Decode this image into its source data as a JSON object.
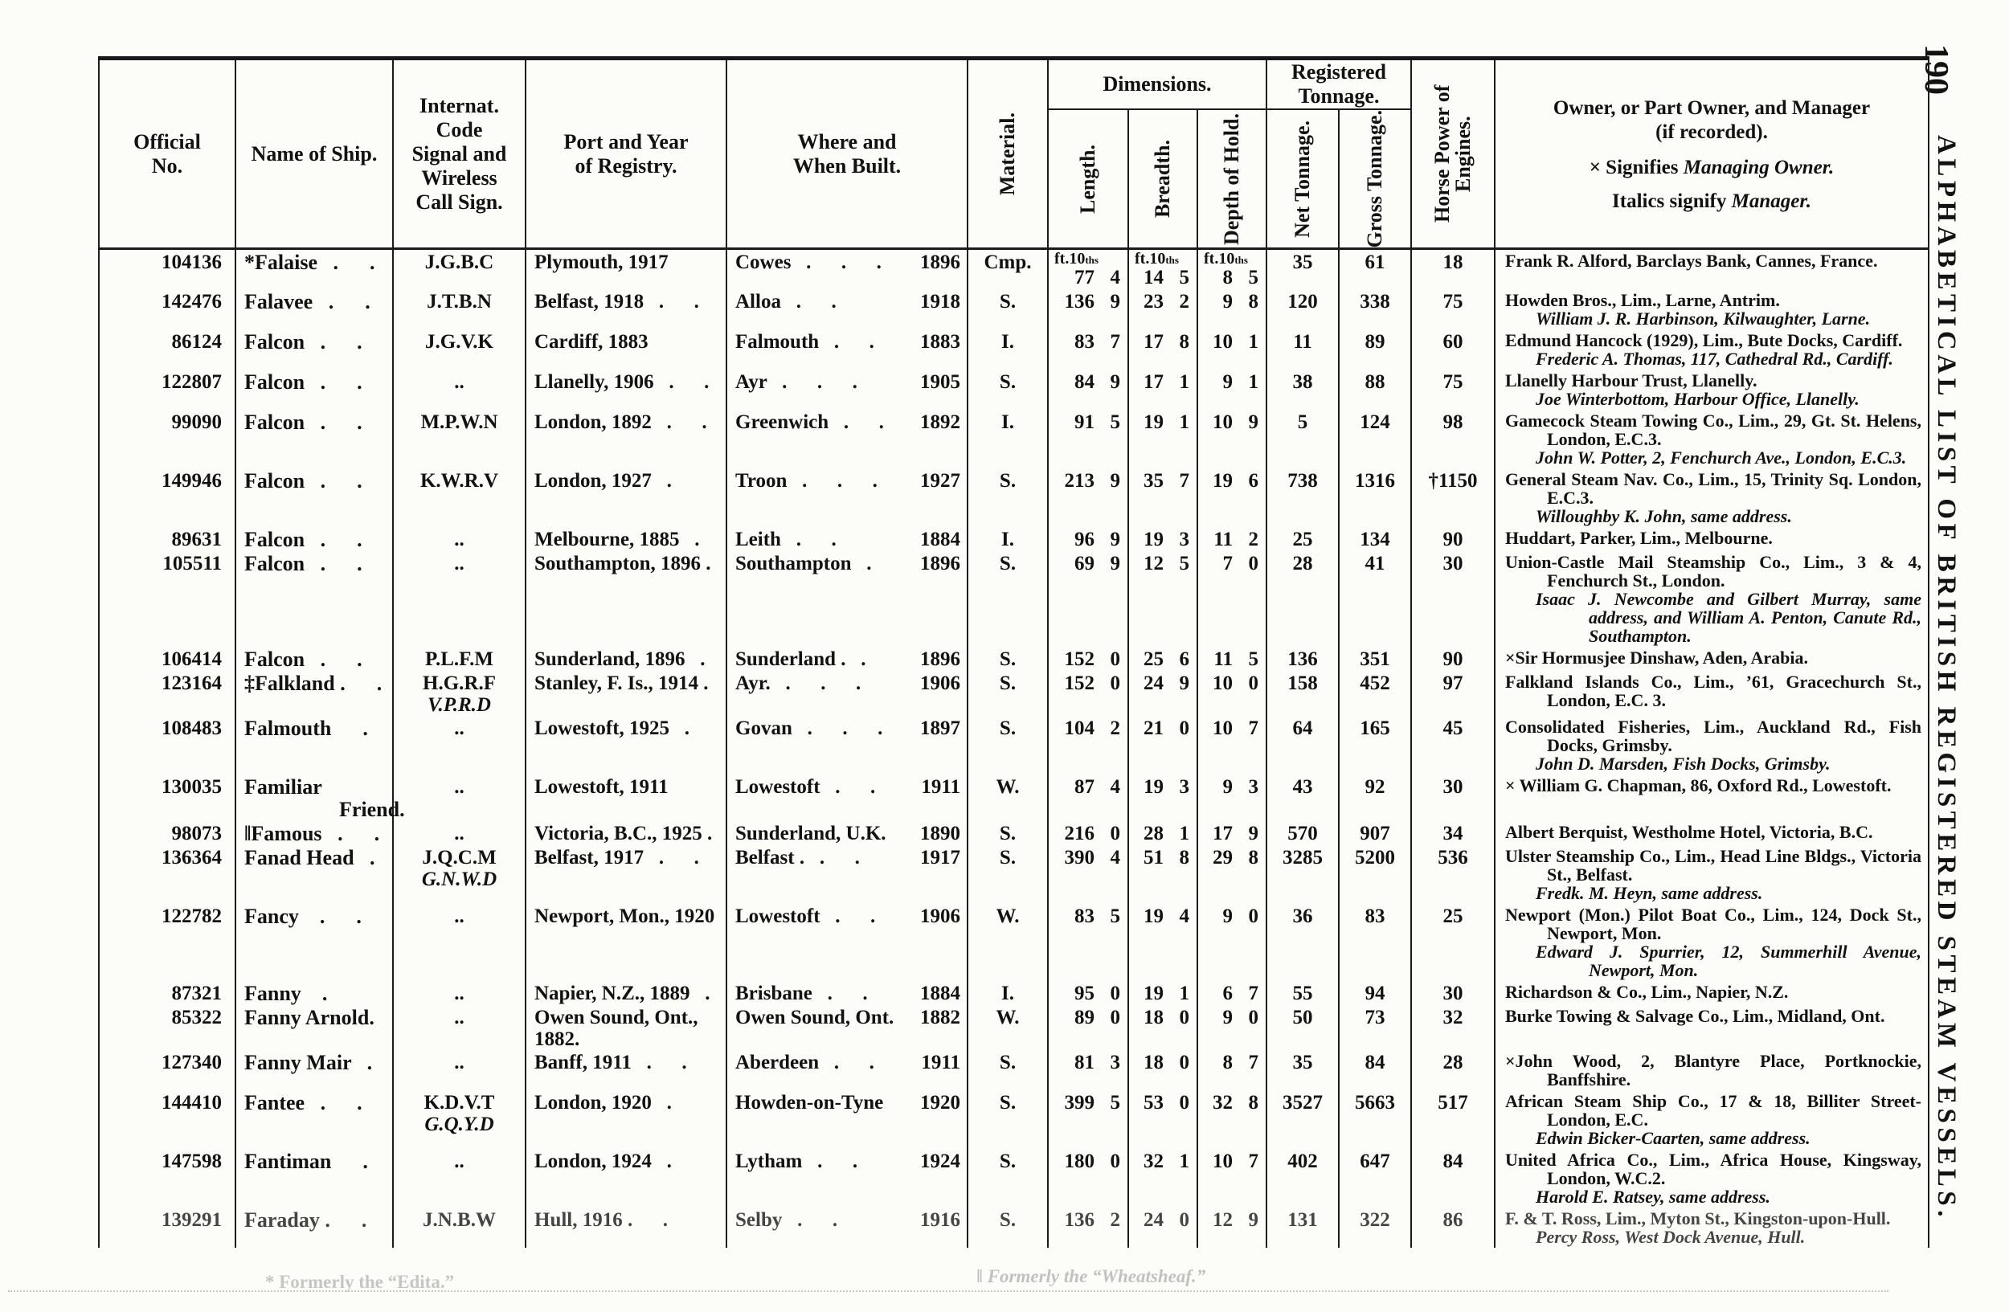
{
  "page": {
    "number": "190",
    "side_title": "ALPHABETICAL LIST OF BRITISH REGISTERED STEAM VESSELS."
  },
  "header": {
    "official_no": "Official No.",
    "name": "Name of Ship.",
    "code": "Internat. Code Signal and Wireless Call Sign.",
    "port": "Port and Year of Registry.",
    "built": "Where and When Built.",
    "material": "Material.",
    "dimensions": "Dimensions.",
    "length": "Length.",
    "breadth": "Breadth.",
    "depth": "Depth of Hold.",
    "reg": "Registered Tonnage.",
    "net": "Net Tonnage.",
    "gross": "Gross Tonnage.",
    "hp": "Horse Power of Engines.",
    "owner1": "Owner, or Part Owner, and Manager",
    "owner2": "(if recorded).",
    "owner3a": "× Signifies ",
    "owner3b": "Managing Owner.",
    "owner4a": "Italics signify ",
    "owner4b": "Manager."
  },
  "units": "ft.10",
  "units_sub": "ths",
  "footnotes": [
    "* Formerly the “Edita.”",
    "‖ Formerly the “Wheatsheaf.”"
  ],
  "rows": [
    {
      "no": "104136",
      "name": "*Falaise",
      "dots": "   .      .",
      "code": [
        "J.G.B.C"
      ],
      "port": "Plymouth, 1917",
      "built": "Cowes   .      .      .",
      "byear": "1896",
      "mat": "Cmp.",
      "l": [
        "77",
        "4"
      ],
      "b": [
        "14",
        "5"
      ],
      "d": [
        "8",
        "5"
      ],
      "net": "35",
      "gross": "61",
      "hp": "18",
      "owners": [
        {
          "t": "Frank R. Alford, Barclays Bank, Cannes, France.",
          "c": "o"
        }
      ]
    },
    {
      "no": "142476",
      "name": "Falavee",
      "dots": "   .      .",
      "code": [
        "J.T.B.N"
      ],
      "port": "Belfast, 1918   .      .",
      "built": "Alloa   .      .",
      "byear": "1918",
      "mat": "S.",
      "l": [
        "136",
        "9"
      ],
      "b": [
        "23",
        "2"
      ],
      "d": [
        "9",
        "8"
      ],
      "net": "120",
      "gross": "338",
      "hp": "75",
      "owners": [
        {
          "t": "Howden Bros., Lim., Larne, Antrim.",
          "c": "o"
        },
        {
          "t": "William J. R. Harbinson, Kilwaughter, Larne.",
          "c": "m"
        }
      ]
    },
    {
      "no": "86124",
      "name": "Falcon",
      "dots": "   .      .",
      "code": [
        "J.G.V.K"
      ],
      "port": "Cardiff, 1883",
      "built": "Falmouth   .      .",
      "byear": "1883",
      "mat": "I.",
      "l": [
        "83",
        "7"
      ],
      "b": [
        "17",
        "8"
      ],
      "d": [
        "10",
        "1"
      ],
      "net": "11",
      "gross": "89",
      "hp": "60",
      "owners": [
        {
          "t": "Edmund Hancock (1929), Lim., Bute Docks, Cardiff.",
          "c": "o"
        },
        {
          "t": "Frederic A. Thomas, 117, Cathedral Rd., Cardiff.",
          "c": "m"
        }
      ]
    },
    {
      "no": "122807",
      "name": "Falcon",
      "dots": "   .      .",
      "code": [
        ".."
      ],
      "port": "Llanelly, 1906   .      .",
      "built": "Ayr   .      .      .",
      "byear": "1905",
      "mat": "S.",
      "l": [
        "84",
        "9"
      ],
      "b": [
        "17",
        "1"
      ],
      "d": [
        "9",
        "1"
      ],
      "net": "38",
      "gross": "88",
      "hp": "75",
      "owners": [
        {
          "t": "Llanelly Harbour Trust, Llanelly.",
          "c": "o"
        },
        {
          "t": "Joe Winterbottom, Harbour Office, Llanelly.",
          "c": "m"
        }
      ]
    },
    {
      "no": "99090",
      "name": "Falcon",
      "dots": "   .      .",
      "code": [
        "M.P.W.N"
      ],
      "port": "London, 1892   .      .",
      "built": "Greenwich   .      .",
      "byear": "1892",
      "mat": "I.",
      "l": [
        "91",
        "5"
      ],
      "b": [
        "19",
        "1"
      ],
      "d": [
        "10",
        "9"
      ],
      "net": "5",
      "gross": "124",
      "hp": "98",
      "owners": [
        {
          "t": "Gamecock Steam Towing Co., Lim., 29, Gt. St. Helens, London, E.C.3.",
          "c": "o"
        },
        {
          "t": "John W. Potter, 2, Fenchurch Ave., London, E.C.3.",
          "c": "m"
        }
      ]
    },
    {
      "no": "149946",
      "name": "Falcon",
      "dots": "   .      .",
      "code": [
        "K.W.R.V"
      ],
      "port": "London, 1927   .",
      "built": "Troon   .      .      .",
      "byear": "1927",
      "mat": "S.",
      "l": [
        "213",
        "9"
      ],
      "b": [
        "35",
        "7"
      ],
      "d": [
        "19",
        "6"
      ],
      "net": "738",
      "gross": "1316",
      "hp": "†1150",
      "owners": [
        {
          "t": "General Steam Nav. Co., Lim., 15, Trinity Sq. London, E.C.3.",
          "c": "o"
        },
        {
          "t": "Willoughby K. John, same address.",
          "c": "m"
        }
      ]
    },
    {
      "no": "89631",
      "name": "Falcon",
      "dots": "   .      .",
      "code": [
        ".."
      ],
      "port": "Melbourne, 1885   .",
      "built": "Leith   .      .",
      "byear": "1884",
      "mat": "I.",
      "l": [
        "96",
        "9"
      ],
      "b": [
        "19",
        "3"
      ],
      "d": [
        "11",
        "2"
      ],
      "net": "25",
      "gross": "134",
      "hp": "90",
      "owners": [
        {
          "t": "Huddart, Parker, Lim., Melbourne.",
          "c": "o"
        }
      ]
    },
    {
      "no": "105511",
      "name": "Falcon",
      "dots": "   .      .",
      "code": [
        ".."
      ],
      "port": "Southampton, 1896 .",
      "built": "Southampton   .",
      "byear": "1896",
      "mat": "S.",
      "l": [
        "69",
        "9"
      ],
      "b": [
        "12",
        "5"
      ],
      "d": [
        "7",
        "0"
      ],
      "net": "28",
      "gross": "41",
      "hp": "30",
      "owners": [
        {
          "t": "Union-Castle Mail Steamship Co., Lim., 3 & 4, Fenchurch St., London.",
          "c": "o"
        },
        {
          "t": "Isaac J. Newcombe and Gilbert Murray, same address, and William A. Penton, Canute Rd., Southampton.",
          "c": "m"
        }
      ]
    },
    {
      "no": "106414",
      "name": "Falcon",
      "dots": "   .      .",
      "code": [
        "P.L.F.M"
      ],
      "port": "Sunderland, 1896   .",
      "built": "Sunderland .   .",
      "byear": "1896",
      "mat": "S.",
      "l": [
        "152",
        "0"
      ],
      "b": [
        "25",
        "6"
      ],
      "d": [
        "11",
        "5"
      ],
      "net": "136",
      "gross": "351",
      "hp": "90",
      "owners": [
        {
          "t": "×Sir Hormusjee Dinshaw, Aden, Arabia.",
          "c": "o"
        }
      ]
    },
    {
      "no": "123164",
      "name": "‡Falkland .",
      "dots": "      .",
      "code": [
        "H.G.R.F",
        "V.P.R.D"
      ],
      "port": "Stanley, F. Is., 1914 .",
      "built": "Ayr.   .      .      .",
      "byear": "1906",
      "mat": "S.",
      "l": [
        "152",
        "0"
      ],
      "b": [
        "24",
        "9"
      ],
      "d": [
        "10",
        "0"
      ],
      "net": "158",
      "gross": "452",
      "hp": "97",
      "owners": [
        {
          "t": "Falkland Islands Co., Lim., ’61, Gracechurch St., London, E.C. 3.",
          "c": "o"
        }
      ]
    },
    {
      "no": "108483",
      "name": "Falmouth",
      "dots": "      .",
      "code": [
        ".."
      ],
      "port": "Lowestoft, 1925   .",
      "built": "Govan   .      .      .",
      "byear": "1897",
      "mat": "S.",
      "l": [
        "104",
        "2"
      ],
      "b": [
        "21",
        "0"
      ],
      "d": [
        "10",
        "7"
      ],
      "net": "64",
      "gross": "165",
      "hp": "45",
      "owners": [
        {
          "t": "Consolidated Fisheries, Lim., Auckland Rd., Fish Docks, Grimsby.",
          "c": "o"
        },
        {
          "t": "John D. Marsden, Fish Docks, Grimsby.",
          "c": "m"
        }
      ]
    },
    {
      "no": "130035",
      "name": "Familiar",
      "name2": "Friend.",
      "code": [
        ".."
      ],
      "port": "Lowestoft, 1911",
      "built": "Lowestoft   .      .",
      "byear": "1911",
      "mat": "W.",
      "l": [
        "87",
        "4"
      ],
      "b": [
        "19",
        "3"
      ],
      "d": [
        "9",
        "3"
      ],
      "net": "43",
      "gross": "92",
      "hp": "30",
      "owners": [
        {
          "t": "× William G. Chapman, 86, Oxford Rd., Lowestoft.",
          "c": "o"
        }
      ]
    },
    {
      "no": "98073",
      "name": "‖Famous",
      "dots": "   .      .",
      "code": [
        ".."
      ],
      "port": "Victoria, B.C., 1925 .",
      "built": "Sunderland, U.K.",
      "byear": "1890",
      "mat": "S.",
      "l": [
        "216",
        "0"
      ],
      "b": [
        "28",
        "1"
      ],
      "d": [
        "17",
        "9"
      ],
      "net": "570",
      "gross": "907",
      "hp": "34",
      "owners": [
        {
          "t": "Albert Berquist, Westholme Hotel, Victoria, B.C.",
          "c": "o"
        }
      ]
    },
    {
      "no": "136364",
      "name": "Fanad Head",
      "dots": "   .",
      "code": [
        "J.Q.C.M",
        "G.N.W.D"
      ],
      "port": "Belfast, 1917   .      .",
      "built": "Belfast .   .      .",
      "byear": "1917",
      "mat": "S.",
      "l": [
        "390",
        "4"
      ],
      "b": [
        "51",
        "8"
      ],
      "d": [
        "29",
        "8"
      ],
      "net": "3285",
      "gross": "5200",
      "hp": "536",
      "owners": [
        {
          "t": "Ulster Steamship Co., Lim., Head Line Bldgs., Victoria St., Belfast.",
          "c": "o"
        },
        {
          "t": "Fredk. M. Heyn, same address.",
          "c": "m"
        }
      ]
    },
    {
      "no": "122782",
      "name": "Fancy",
      "dots": "    .      .",
      "code": [
        ".."
      ],
      "port": "Newport, Mon., 1920",
      "built": "Lowestoft   .      .",
      "byear": "1906",
      "mat": "W.",
      "l": [
        "83",
        "5"
      ],
      "b": [
        "19",
        "4"
      ],
      "d": [
        "9",
        "0"
      ],
      "net": "36",
      "gross": "83",
      "hp": "25",
      "owners": [
        {
          "t": "Newport (Mon.) Pilot Boat Co., Lim., 124, Dock St., Newport, Mon.",
          "c": "o"
        },
        {
          "t": "Edward J. Spurrier, 12, Summerhill Avenue, Newport, Mon.",
          "c": "m"
        }
      ]
    },
    {
      "no": "87321",
      "name": "Fanny",
      "dots": "    .",
      "code": [
        ".."
      ],
      "port": "Napier, N.Z., 1889   .",
      "built": "Brisbane   .      .",
      "byear": "1884",
      "mat": "I.",
      "l": [
        "95",
        "0"
      ],
      "b": [
        "19",
        "1"
      ],
      "d": [
        "6",
        "7"
      ],
      "net": "55",
      "gross": "94",
      "hp": "30",
      "owners": [
        {
          "t": "Richardson & Co., Lim., Napier, N.Z.",
          "c": "o"
        }
      ]
    },
    {
      "no": "85322",
      "name": "Fanny Arnold.",
      "code": [
        ".."
      ],
      "port": "Owen Sound, Ont., 1882.",
      "built": "Owen Sound, Ont.",
      "byear": "1882",
      "mat": "W.",
      "l": [
        "89",
        "0"
      ],
      "b": [
        "18",
        "0"
      ],
      "d": [
        "9",
        "0"
      ],
      "net": "50",
      "gross": "73",
      "hp": "32",
      "owners": [
        {
          "t": "Burke Towing & Salvage Co., Lim., Midland, Ont.",
          "c": "o"
        }
      ]
    },
    {
      "no": "127340",
      "name": "Fanny Mair",
      "dots": "   .",
      "code": [
        ".."
      ],
      "port": "Banff, 1911   .      .",
      "built": "Aberdeen   .      .",
      "byear": "1911",
      "mat": "S.",
      "l": [
        "81",
        "3"
      ],
      "b": [
        "18",
        "0"
      ],
      "d": [
        "8",
        "7"
      ],
      "net": "35",
      "gross": "84",
      "hp": "28",
      "owners": [
        {
          "t": "×John Wood, 2, Blantyre Place, Portknockie, Banffshire.",
          "c": "o"
        }
      ]
    },
    {
      "no": "144410",
      "name": "Fantee",
      "dots": "   .      .",
      "code": [
        "K.D.V.T",
        "G.Q.Y.D"
      ],
      "port": "London, 1920   .",
      "built": "Howden-on-Tyne",
      "byear": "1920",
      "mat": "S.",
      "l": [
        "399",
        "5"
      ],
      "b": [
        "53",
        "0"
      ],
      "d": [
        "32",
        "8"
      ],
      "net": "3527",
      "gross": "5663",
      "hp": "517",
      "owners": [
        {
          "t": "African Steam Ship Co., 17 & 18, Billiter Street- London, E.C.",
          "c": "o"
        },
        {
          "t": "Edwin Bicker-Caarten, same address.",
          "c": "m"
        }
      ]
    },
    {
      "no": "147598",
      "name": "Fantiman",
      "dots": "      .",
      "code": [
        ".."
      ],
      "port": "London, 1924   .",
      "built": "Lytham   .      .",
      "byear": "1924",
      "mat": "S.",
      "l": [
        "180",
        "0"
      ],
      "b": [
        "32",
        "1"
      ],
      "d": [
        "10",
        "7"
      ],
      "net": "402",
      "gross": "647",
      "hp": "84",
      "owners": [
        {
          "t": "United Africa Co., Lim., Africa House, Kingsway, London, W.C.2.",
          "c": "o"
        },
        {
          "t": "Harold E. Ratsey, same address.",
          "c": "m"
        }
      ]
    },
    {
      "no": "139291",
      "name": "Faraday .",
      "dots": "      .",
      "code": [
        "J.N.B.W"
      ],
      "port": "Hull, 1916 .      .",
      "built": "Selby   .      .",
      "byear": "1916",
      "mat": "S.",
      "l": [
        "136",
        "2"
      ],
      "b": [
        "24",
        "0"
      ],
      "d": [
        "12",
        "9"
      ],
      "net": "131",
      "gross": "322",
      "hp": "86",
      "owners": [
        {
          "t": "F. & T. Ross, Lim., Myton St., Kingston-upon-Hull.",
          "c": "o"
        },
        {
          "t": "Percy Ross, West Dock Avenue, Hull.",
          "c": "m"
        }
      ]
    }
  ]
}
